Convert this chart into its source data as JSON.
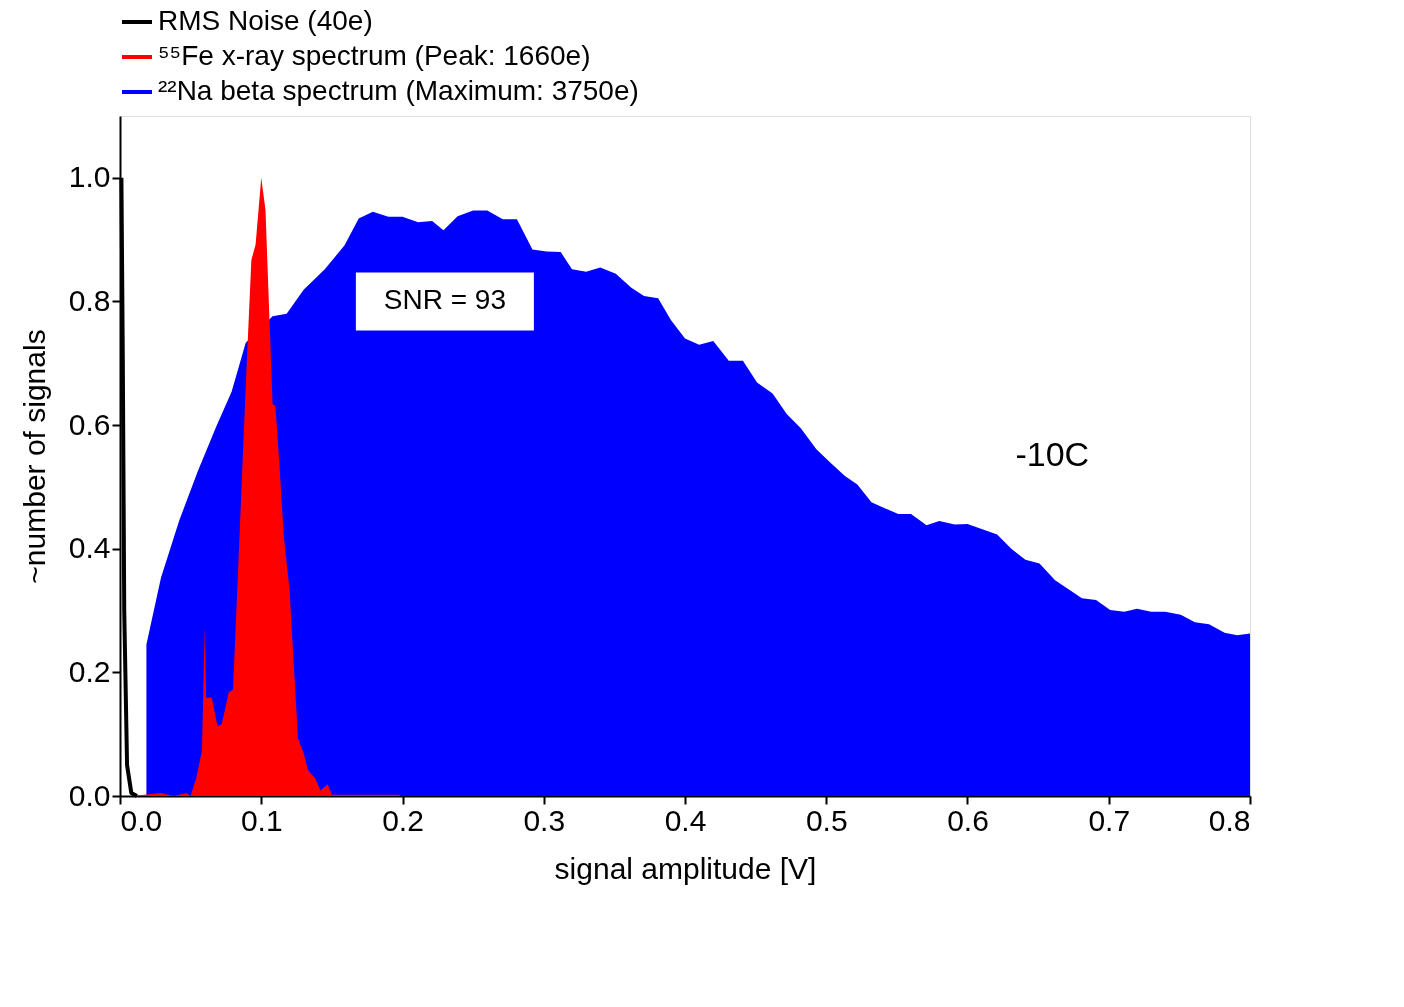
{
  "chart_data": {
    "type": "area",
    "xlabel": "signal amplitude [V]",
    "ylabel": "~number of signals",
    "xlim": [
      0,
      0.8
    ],
    "ylim": [
      0,
      1.1
    ],
    "xticks": [
      {
        "value": 0,
        "label": "0.0"
      },
      {
        "value": 0.1,
        "label": "0.1"
      },
      {
        "value": 0.2,
        "label": "0.2"
      },
      {
        "value": 0.3,
        "label": "0.3"
      },
      {
        "value": 0.4,
        "label": "0.4"
      },
      {
        "value": 0.5,
        "label": "0.5"
      },
      {
        "value": 0.6,
        "label": "0.6"
      },
      {
        "value": 0.7,
        "label": "0.7"
      },
      {
        "value": 0.8,
        "label": "0.8"
      }
    ],
    "yticks": [
      {
        "value": 0,
        "label": "0.0"
      },
      {
        "value": 0.2,
        "label": "0.2"
      },
      {
        "value": 0.4,
        "label": "0.4"
      },
      {
        "value": 0.6,
        "label": "0.6"
      },
      {
        "value": 0.8,
        "label": "0.8"
      },
      {
        "value": 1.0,
        "label": "1.0"
      }
    ],
    "grid": false,
    "legend": "top",
    "annotations": [
      "SNR = 93",
      "-10C"
    ],
    "series": [
      {
        "name": "RMS Noise (40e)",
        "type": "line",
        "color": "#000000",
        "x": [
          0.001,
          0.002,
          0.003,
          0.005,
          0.008,
          0.012
        ],
        "values": [
          1.0,
          0.7,
          0.3,
          0.05,
          0.005,
          0
        ]
      },
      {
        "name": "⁵⁵Fe x-ray spectrum (Peak: 1660e)",
        "color": "#ff0000",
        "x": [
          0.009,
          0.029,
          0.038,
          0.047,
          0.05,
          0.054,
          0.058,
          0.06,
          0.061,
          0.065,
          0.069,
          0.072,
          0.077,
          0.08,
          0.084,
          0.089,
          0.093,
          0.096,
          0.1,
          0.103,
          0.108,
          0.11,
          0.113,
          0.116,
          0.12,
          0.126,
          0.13,
          0.133,
          0.138,
          0.142,
          0.147,
          0.15,
          0.198
        ],
        "values": [
          0,
          0.005,
          0,
          0.005,
          0,
          0.029,
          0.073,
          0.273,
          0.159,
          0.159,
          0.113,
          0.116,
          0.168,
          0.172,
          0.387,
          0.662,
          0.867,
          0.892,
          1.0,
          0.948,
          0.634,
          0.631,
          0.531,
          0.419,
          0.334,
          0.093,
          0.07,
          0.042,
          0.029,
          0.009,
          0.019,
          0.002,
          0.002
        ]
      },
      {
        "name": "²²Na beta spectrum (Maximum: 3750e)",
        "color": "#0000ff",
        "x": [
          0.0187,
          0.0187,
          0.029,
          0.042,
          0.055,
          0.068,
          0.079,
          0.089,
          0.108,
          0.118,
          0.13,
          0.145,
          0.159,
          0.169,
          0.179,
          0.19,
          0.2,
          0.211,
          0.221,
          0.229,
          0.239,
          0.25,
          0.26,
          0.271,
          0.281,
          0.292,
          0.302,
          0.312,
          0.32,
          0.33,
          0.34,
          0.351,
          0.362,
          0.371,
          0.381,
          0.39,
          0.4,
          0.41,
          0.42,
          0.431,
          0.441,
          0.451,
          0.462,
          0.472,
          0.482,
          0.493,
          0.503,
          0.513,
          0.522,
          0.532,
          0.541,
          0.551,
          0.56,
          0.571,
          0.58,
          0.591,
          0.6,
          0.61,
          0.621,
          0.631,
          0.641,
          0.651,
          0.662,
          0.681,
          0.691,
          0.701,
          0.711,
          0.72,
          0.73,
          0.74,
          0.751,
          0.761,
          0.771,
          0.782,
          0.791,
          0.8
        ],
        "values": [
          0,
          0.245,
          0.353,
          0.446,
          0.525,
          0.597,
          0.654,
          0.733,
          0.776,
          0.78,
          0.819,
          0.852,
          0.891,
          0.934,
          0.945,
          0.937,
          0.937,
          0.928,
          0.93,
          0.915,
          0.938,
          0.947,
          0.947,
          0.933,
          0.933,
          0.884,
          0.881,
          0.88,
          0.852,
          0.848,
          0.855,
          0.845,
          0.822,
          0.809,
          0.805,
          0.77,
          0.74,
          0.73,
          0.736,
          0.704,
          0.704,
          0.669,
          0.651,
          0.618,
          0.595,
          0.561,
          0.539,
          0.518,
          0.504,
          0.475,
          0.466,
          0.456,
          0.456,
          0.438,
          0.445,
          0.439,
          0.44,
          0.432,
          0.423,
          0.4,
          0.382,
          0.376,
          0.349,
          0.32,
          0.317,
          0.301,
          0.298,
          0.303,
          0.298,
          0.298,
          0.293,
          0.281,
          0.278,
          0.264,
          0.26,
          0.263
        ]
      }
    ]
  }
}
